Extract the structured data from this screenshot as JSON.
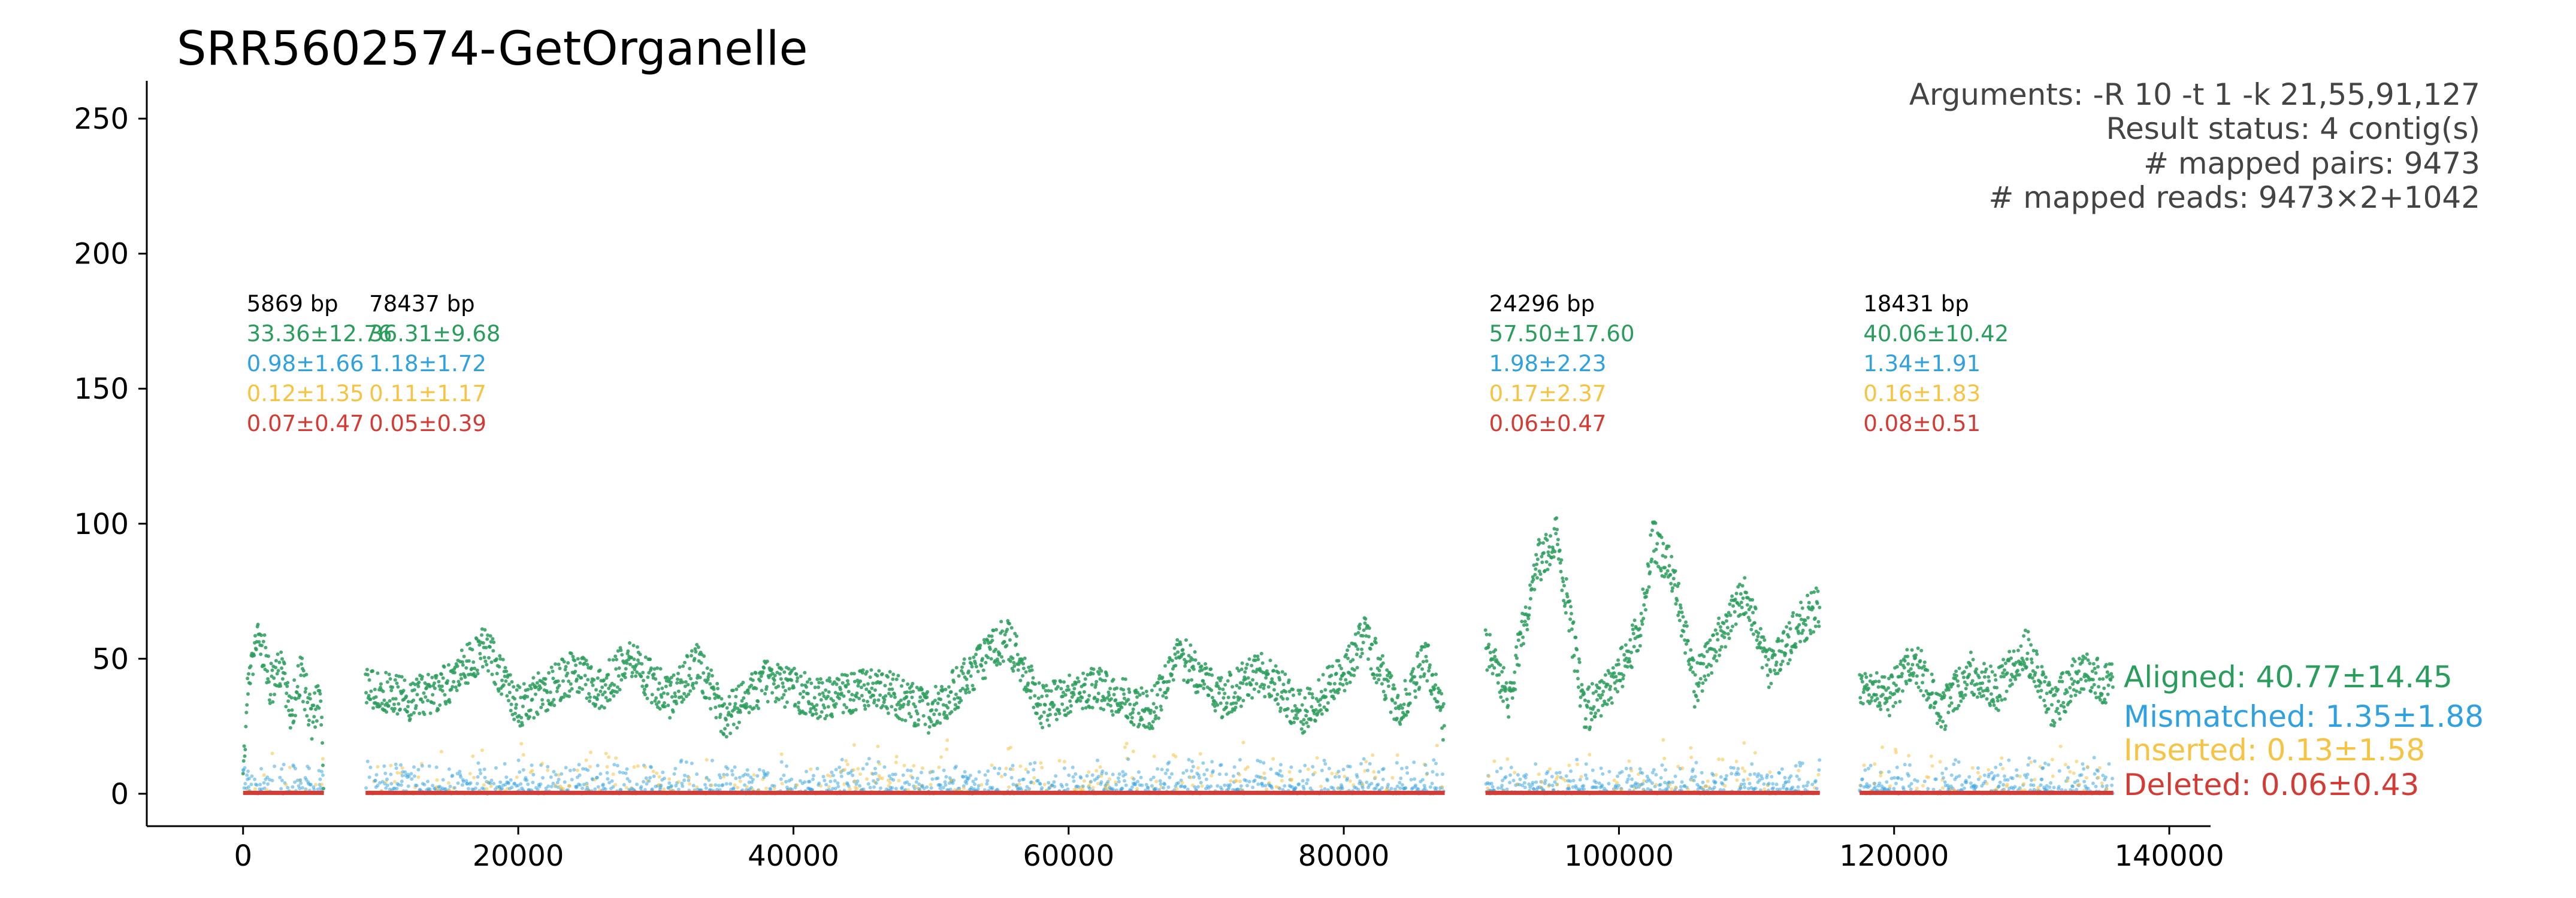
{
  "chart_data": {
    "type": "scatter",
    "title": "SRR5602574-GetOrganelle",
    "xlabel": "",
    "ylabel": "",
    "xlim": [
      -7000,
      143000
    ],
    "ylim": [
      -12,
      264
    ],
    "xticks": [
      "0",
      "20000",
      "40000",
      "60000",
      "80000",
      "100000",
      "120000",
      "140000"
    ],
    "yticks": [
      "0",
      "50",
      "100",
      "150",
      "200",
      "250"
    ],
    "grid": false,
    "info_lines": [
      "Arguments: -R 10 -t 1 -k 21,55,91,127",
      "Result status: 4 contig(s)",
      "# mapped pairs: 9473",
      "# mapped reads: 9473×2+1042"
    ],
    "colors": {
      "aligned": "#2a9d5c",
      "mismatched": "#2fa1e0",
      "inserted": "#f6c343",
      "deleted": "#d43b34"
    },
    "contigs": [
      {
        "length_label": "5869 bp",
        "start": 0,
        "end": 5869,
        "aligned": "33.36±12.76",
        "mismatched": "0.98±1.66",
        "inserted": "0.12±1.35",
        "deleted": "0.07±0.47",
        "profile": [
          [
            0,
            5
          ],
          [
            300,
            38
          ],
          [
            900,
            58
          ],
          [
            1400,
            55
          ],
          [
            2000,
            40
          ],
          [
            2800,
            48
          ],
          [
            3500,
            30
          ],
          [
            4200,
            45
          ],
          [
            5000,
            28
          ],
          [
            5600,
            35
          ],
          [
            5869,
            5
          ]
        ]
      },
      {
        "length_label": "78437 bp",
        "start": 8900,
        "end": 87337,
        "aligned": "36.31±9.68",
        "mismatched": "1.18±1.72",
        "inserted": "0.11±1.17",
        "deleted": "0.05±0.39",
        "profile": [
          [
            8900,
            40
          ],
          [
            12000,
            35
          ],
          [
            15000,
            40
          ],
          [
            17600,
            55
          ],
          [
            20000,
            32
          ],
          [
            24000,
            45
          ],
          [
            26000,
            38
          ],
          [
            28000,
            50
          ],
          [
            31000,
            35
          ],
          [
            33000,
            48
          ],
          [
            35000,
            28
          ],
          [
            38000,
            42
          ],
          [
            42000,
            35
          ],
          [
            46000,
            40
          ],
          [
            50000,
            30
          ],
          [
            53000,
            45
          ],
          [
            55500,
            58
          ],
          [
            58000,
            32
          ],
          [
            62000,
            40
          ],
          [
            66000,
            30
          ],
          [
            68000,
            52
          ],
          [
            71000,
            35
          ],
          [
            74000,
            45
          ],
          [
            77000,
            30
          ],
          [
            80000,
            45
          ],
          [
            81500,
            58
          ],
          [
            84000,
            32
          ],
          [
            86000,
            50
          ],
          [
            87337,
            25
          ]
        ]
      },
      {
        "length_label": "24296 bp",
        "start": 90300,
        "end": 114596,
        "aligned": "57.50±17.60",
        "mismatched": "1.98±2.23",
        "inserted": "0.17±2.37",
        "deleted": "0.06±0.47",
        "profile": [
          [
            90300,
            55
          ],
          [
            92000,
            35
          ],
          [
            94000,
            85
          ],
          [
            95500,
            95
          ],
          [
            97500,
            30
          ],
          [
            99500,
            40
          ],
          [
            101500,
            60
          ],
          [
            102500,
            95
          ],
          [
            104000,
            80
          ],
          [
            105500,
            40
          ],
          [
            107000,
            55
          ],
          [
            109000,
            75
          ],
          [
            111000,
            45
          ],
          [
            113000,
            62
          ],
          [
            114596,
            70
          ]
        ]
      },
      {
        "length_label": "18431 bp",
        "start": 117500,
        "end": 135931,
        "aligned": "40.06±10.42",
        "mismatched": "1.34±1.91",
        "inserted": "0.16±1.83",
        "deleted": "0.08±0.51",
        "profile": [
          [
            117500,
            40
          ],
          [
            119500,
            35
          ],
          [
            121500,
            50
          ],
          [
            123500,
            30
          ],
          [
            125500,
            45
          ],
          [
            127500,
            38
          ],
          [
            129500,
            55
          ],
          [
            131500,
            32
          ],
          [
            133500,
            45
          ],
          [
            135931,
            40
          ]
        ]
      }
    ],
    "series": [
      {
        "name": "Aligned: 40.77±14.45",
        "color": "#2a9d5c"
      },
      {
        "name": "Mismatched: 1.35±1.88",
        "color": "#2fa1e0"
      },
      {
        "name": "Inserted: 0.13±1.58",
        "color": "#f6c343"
      },
      {
        "name": "Deleted: 0.06±0.43",
        "color": "#d43b34"
      }
    ]
  }
}
